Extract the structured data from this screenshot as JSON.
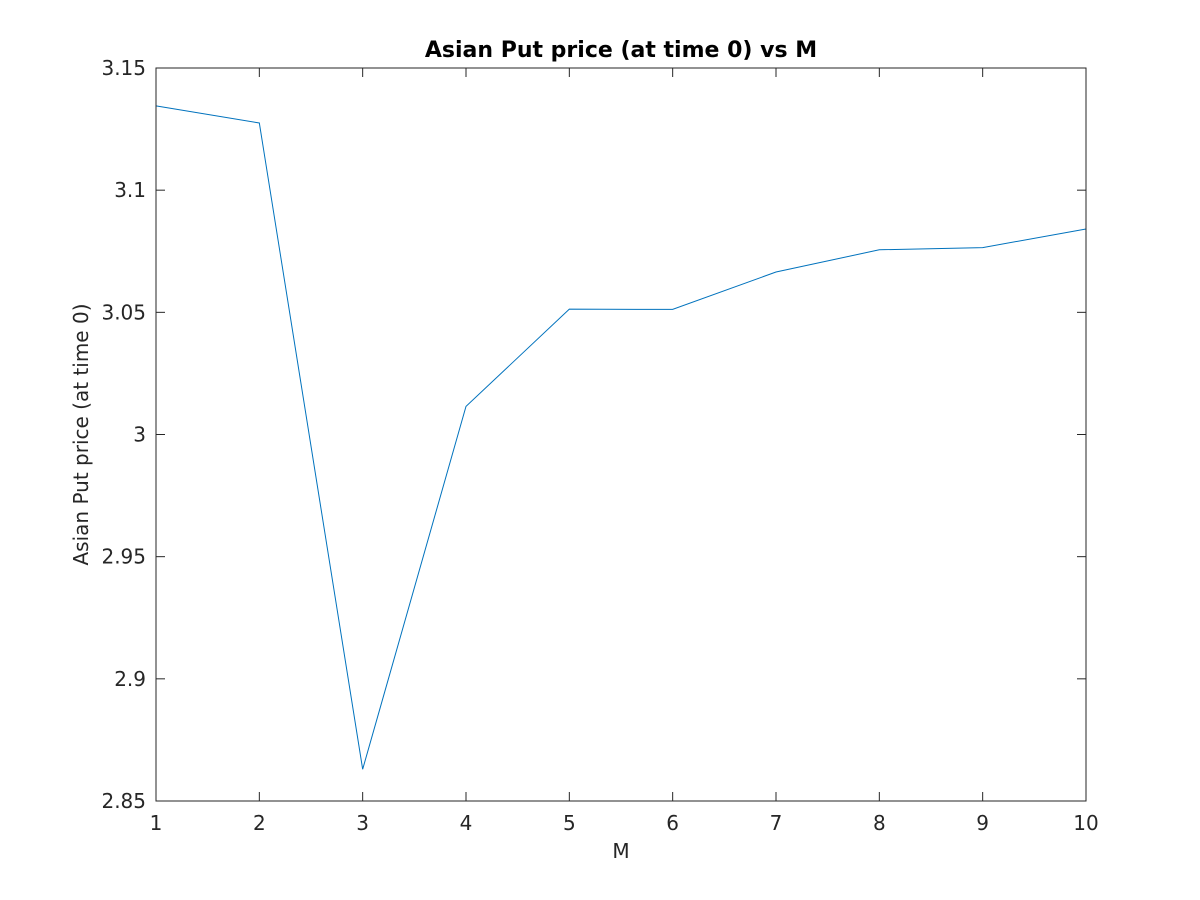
{
  "chart_data": {
    "type": "line",
    "title": "Asian Put price (at time 0) vs M",
    "xlabel": "M",
    "ylabel": "Asian Put price (at time 0)",
    "xlim": [
      1,
      10
    ],
    "ylim": [
      2.85,
      3.15
    ],
    "xticks": [
      "1",
      "2",
      "3",
      "4",
      "5",
      "6",
      "7",
      "8",
      "9",
      "10"
    ],
    "yticks": [
      "2.85",
      "2.9",
      "2.95",
      "3",
      "3.05",
      "3.1",
      "3.15"
    ],
    "grid": false,
    "legend": "none",
    "series": [
      {
        "color": "#0072BD",
        "x": [
          1,
          2,
          3,
          4,
          5,
          6,
          7,
          8,
          9,
          10
        ],
        "y": [
          3.1345,
          3.1275,
          2.863,
          3.0115,
          3.0513,
          3.0512,
          3.0665,
          3.0756,
          3.0765,
          3.0841
        ]
      }
    ]
  }
}
